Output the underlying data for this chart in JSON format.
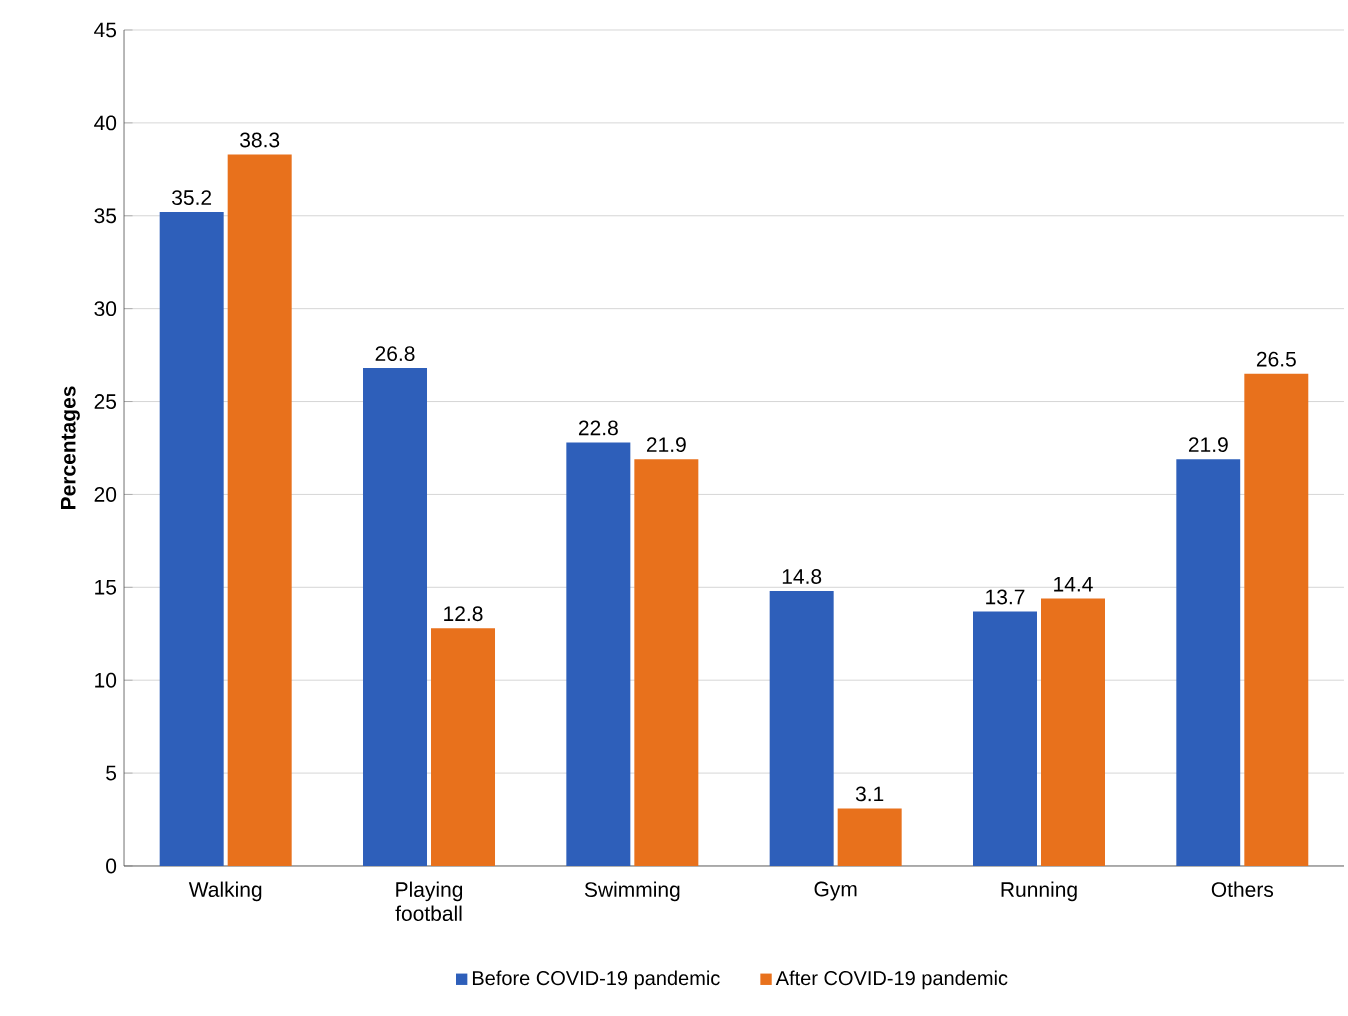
{
  "chart_data": {
    "type": "bar",
    "ylabel": "Percentages",
    "categories": [
      "Walking",
      "Playing football",
      "Swimming",
      "Gym",
      "Running",
      "Others"
    ],
    "series": [
      {
        "name": "Before COVID-19 pandemic",
        "color": "#2e5fba",
        "values": [
          35.2,
          26.8,
          22.8,
          14.8,
          13.7,
          21.9
        ]
      },
      {
        "name": "After COVID-19 pandemic",
        "color": "#e8711c",
        "values": [
          38.3,
          12.8,
          21.9,
          3.1,
          14.4,
          26.5
        ]
      }
    ],
    "ylim": [
      0,
      45
    ],
    "yticks": [
      0,
      5,
      10,
      15,
      20,
      25,
      30,
      35,
      40,
      45
    ],
    "grid": "y",
    "legend": "bottom",
    "data_labels": true
  }
}
